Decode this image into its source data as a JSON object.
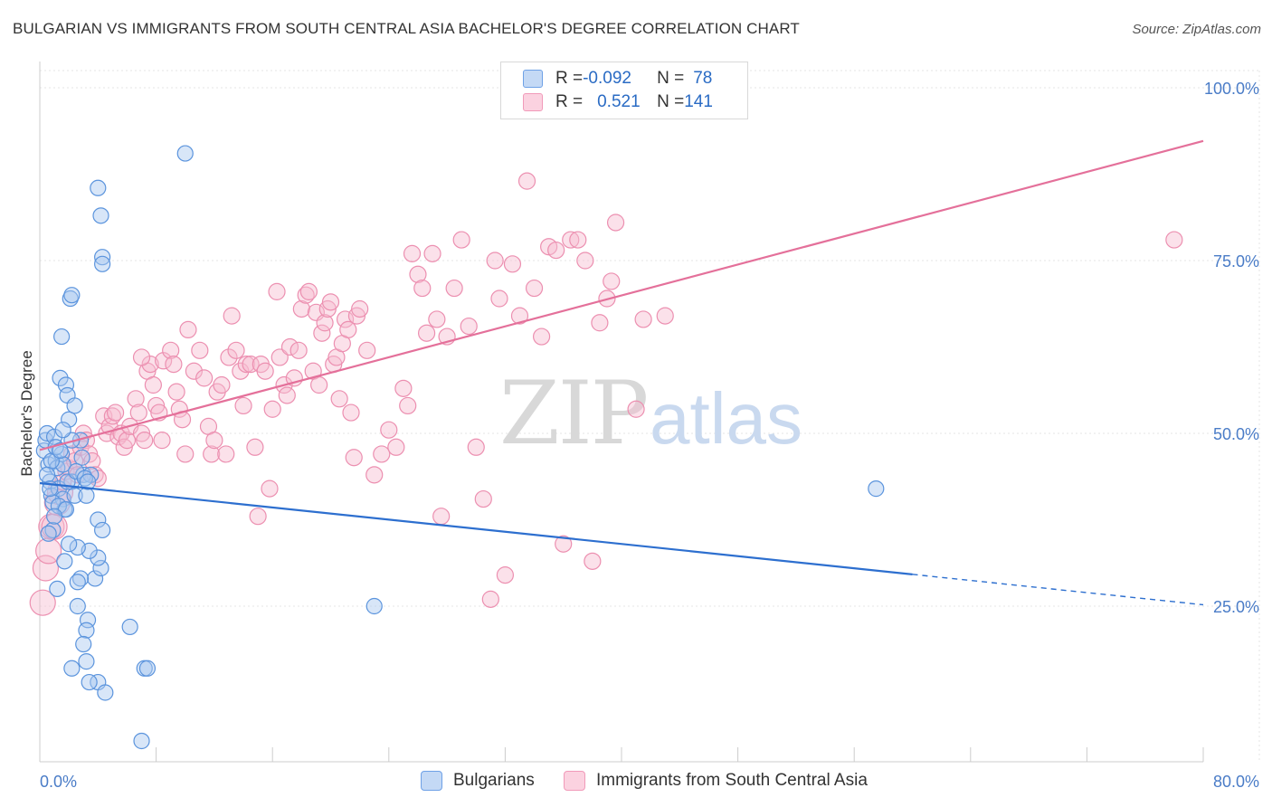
{
  "title": "BULGARIAN VS IMMIGRANTS FROM SOUTH CENTRAL ASIA BACHELOR'S DEGREE CORRELATION CHART",
  "source": "Source: ZipAtlas.com",
  "watermark": {
    "zip": "ZIP",
    "atlas": "atlas"
  },
  "legend_top": {
    "rows": [
      {
        "r_label": "R = ",
        "r_value": "-0.092",
        "n_label": "N = ",
        "n_value": "78",
        "color": "#6ea1e6"
      },
      {
        "r_label": "R = ",
        "r_value": "0.521",
        "n_label": "N = ",
        "n_value": "141",
        "color": "#f19ab9"
      }
    ]
  },
  "legend_bottom": {
    "series_a": "Bulgarians",
    "series_b": "Immigrants from South Central Asia"
  },
  "colors": {
    "blue_fill": "#a9c7f0",
    "blue_stroke": "#5b94dd",
    "blue_line": "#2d6fcf",
    "pink_fill": "#f7bcd0",
    "pink_stroke": "#ec8fb0",
    "pink_line": "#e4709a",
    "grid": "#e6e6e6",
    "axis": "#cccccc",
    "tick_text": "#4a7cc7"
  },
  "chart_data": {
    "type": "scatter",
    "title": "BULGARIAN VS IMMIGRANTS FROM SOUTH CENTRAL ASIA BACHELOR'S DEGREE CORRELATION CHART",
    "xlabel": "",
    "ylabel": "Bachelor's Degree",
    "xlim": [
      0,
      80
    ],
    "ylim": [
      0,
      105
    ],
    "x_tick_labels": [
      {
        "value": 0,
        "label": "0.0%"
      },
      {
        "value": 80,
        "label": "80.0%"
      }
    ],
    "y_tick_labels": [
      {
        "value": 25,
        "label": "25.0%"
      },
      {
        "value": 50,
        "label": "50.0%"
      },
      {
        "value": 75,
        "label": "75.0%"
      },
      {
        "value": 100,
        "label": "100.0%"
      }
    ],
    "series": [
      {
        "name": "Bulgarians",
        "r": -0.092,
        "n": 78,
        "trend": {
          "x0": 0,
          "y0": 42.8,
          "x1": 60,
          "y1": 29.6,
          "dash_to_x": 80,
          "dash_to_y": 25.2
        },
        "points": [
          [
            0.3,
            47.5
          ],
          [
            0.4,
            49
          ],
          [
            0.5,
            50
          ],
          [
            0.6,
            45.5
          ],
          [
            0.7,
            43
          ],
          [
            0.8,
            41
          ],
          [
            0.9,
            36
          ],
          [
            1.0,
            49.5
          ],
          [
            1.1,
            46
          ],
          [
            1.2,
            45
          ],
          [
            1.3,
            42
          ],
          [
            1.4,
            58
          ],
          [
            1.5,
            47
          ],
          [
            1.6,
            40.5
          ],
          [
            1.7,
            39
          ],
          [
            1.8,
            57
          ],
          [
            1.9,
            55.5
          ],
          [
            2.0,
            52
          ],
          [
            2.2,
            43
          ],
          [
            2.4,
            41
          ],
          [
            1.5,
            64
          ],
          [
            2.1,
            69.5
          ],
          [
            2.2,
            70
          ],
          [
            2.8,
            49
          ],
          [
            2.9,
            46.5
          ],
          [
            3.0,
            44
          ],
          [
            3.2,
            41
          ],
          [
            3.5,
            44
          ],
          [
            4.0,
            37.5
          ],
          [
            4.3,
            36
          ],
          [
            3.8,
            29
          ],
          [
            2.8,
            29
          ],
          [
            2.6,
            28.5
          ],
          [
            4.2,
            30.5
          ],
          [
            4.0,
            32
          ],
          [
            3.4,
            33
          ],
          [
            2.6,
            33.5
          ],
          [
            2.0,
            34
          ],
          [
            1.7,
            31.5
          ],
          [
            1.2,
            27.5
          ],
          [
            3.3,
            23
          ],
          [
            3.2,
            21.5
          ],
          [
            3.0,
            19.5
          ],
          [
            2.6,
            25
          ],
          [
            3.2,
            17
          ],
          [
            2.2,
            16
          ],
          [
            4.0,
            14
          ],
          [
            3.4,
            14
          ],
          [
            4.5,
            12.5
          ],
          [
            6.2,
            22
          ],
          [
            7.2,
            16
          ],
          [
            7.4,
            16
          ],
          [
            7.0,
            5.5
          ],
          [
            4.3,
            75.5
          ],
          [
            4.3,
            74.5
          ],
          [
            4.0,
            85.5
          ],
          [
            4.2,
            81.5
          ],
          [
            10.0,
            90.5
          ],
          [
            57.5,
            42
          ],
          [
            23.0,
            25
          ],
          [
            2.4,
            54
          ],
          [
            1.6,
            45.5
          ],
          [
            1.9,
            43
          ],
          [
            2.5,
            44.5
          ],
          [
            0.9,
            40
          ],
          [
            1.3,
            39.5
          ],
          [
            1.8,
            39
          ],
          [
            3.1,
            43.5
          ],
          [
            3.3,
            43
          ],
          [
            0.6,
            35.5
          ],
          [
            0.8,
            46
          ],
          [
            1.1,
            48
          ],
          [
            1.4,
            47.5
          ],
          [
            0.5,
            44
          ],
          [
            0.7,
            42
          ],
          [
            1.0,
            38
          ],
          [
            2.2,
            49
          ],
          [
            1.6,
            50.5
          ]
        ]
      },
      {
        "name": "Immigrants from South Central Asia",
        "r": 0.521,
        "n": 141,
        "trend": {
          "x0": 0,
          "y0": 47.6,
          "x1": 80,
          "y1": 92.3
        },
        "points": [
          [
            0.2,
            25.5
          ],
          [
            0.4,
            30.5
          ],
          [
            0.6,
            33
          ],
          [
            0.8,
            36.5
          ],
          [
            1.0,
            36.5
          ],
          [
            1.2,
            40
          ],
          [
            1.4,
            41.5
          ],
          [
            1.6,
            43
          ],
          [
            1.8,
            44.5
          ],
          [
            2.0,
            45
          ],
          [
            2.2,
            47
          ],
          [
            2.4,
            46
          ],
          [
            2.6,
            44
          ],
          [
            2.8,
            48
          ],
          [
            3.0,
            50
          ],
          [
            3.2,
            49
          ],
          [
            3.4,
            47
          ],
          [
            3.6,
            46
          ],
          [
            3.8,
            44
          ],
          [
            4.0,
            43.5
          ],
          [
            4.4,
            52.5
          ],
          [
            4.6,
            50
          ],
          [
            4.8,
            51
          ],
          [
            5.0,
            52.5
          ],
          [
            5.2,
            53
          ],
          [
            5.4,
            49.5
          ],
          [
            5.6,
            50
          ],
          [
            5.8,
            48
          ],
          [
            6.0,
            49
          ],
          [
            6.2,
            51
          ],
          [
            6.6,
            55
          ],
          [
            6.8,
            53
          ],
          [
            7.0,
            50
          ],
          [
            7.2,
            49
          ],
          [
            7.4,
            59
          ],
          [
            7.6,
            60
          ],
          [
            7.8,
            57
          ],
          [
            8.0,
            54
          ],
          [
            8.2,
            53
          ],
          [
            8.4,
            49
          ],
          [
            7.0,
            61
          ],
          [
            8.5,
            60.5
          ],
          [
            9.0,
            62
          ],
          [
            9.2,
            60
          ],
          [
            9.4,
            56
          ],
          [
            9.6,
            53.5
          ],
          [
            9.8,
            52
          ],
          [
            10.0,
            47
          ],
          [
            10.2,
            65
          ],
          [
            10.6,
            59
          ],
          [
            11.0,
            62
          ],
          [
            11.3,
            58
          ],
          [
            11.6,
            51
          ],
          [
            11.8,
            47
          ],
          [
            12.0,
            49
          ],
          [
            12.2,
            56
          ],
          [
            12.5,
            57
          ],
          [
            12.8,
            47
          ],
          [
            13.0,
            61
          ],
          [
            13.2,
            67
          ],
          [
            13.5,
            62
          ],
          [
            13.8,
            59
          ],
          [
            14.0,
            54
          ],
          [
            14.2,
            60
          ],
          [
            14.5,
            60
          ],
          [
            14.8,
            48
          ],
          [
            15.0,
            38
          ],
          [
            15.2,
            60
          ],
          [
            15.5,
            59
          ],
          [
            15.8,
            42
          ],
          [
            16.0,
            53.5
          ],
          [
            16.3,
            70.5
          ],
          [
            16.5,
            61
          ],
          [
            16.8,
            57
          ],
          [
            17.0,
            55.5
          ],
          [
            17.2,
            62.5
          ],
          [
            17.5,
            58
          ],
          [
            17.8,
            62
          ],
          [
            18.0,
            68
          ],
          [
            18.3,
            70
          ],
          [
            18.5,
            70.5
          ],
          [
            18.8,
            59
          ],
          [
            19.0,
            67.5
          ],
          [
            19.2,
            57
          ],
          [
            19.4,
            64.5
          ],
          [
            19.6,
            66
          ],
          [
            19.8,
            68
          ],
          [
            20.0,
            69
          ],
          [
            20.2,
            60
          ],
          [
            20.4,
            61
          ],
          [
            20.6,
            55
          ],
          [
            20.8,
            63
          ],
          [
            21.0,
            66.5
          ],
          [
            21.2,
            65
          ],
          [
            21.4,
            53
          ],
          [
            21.6,
            46.5
          ],
          [
            21.8,
            67
          ],
          [
            22.0,
            68
          ],
          [
            22.5,
            62
          ],
          [
            23.0,
            44
          ],
          [
            23.5,
            47
          ],
          [
            24.0,
            50.5
          ],
          [
            24.5,
            48
          ],
          [
            25.0,
            56.5
          ],
          [
            25.3,
            54
          ],
          [
            25.6,
            76
          ],
          [
            26.0,
            73
          ],
          [
            26.3,
            71
          ],
          [
            26.6,
            64.5
          ],
          [
            27.0,
            76
          ],
          [
            27.3,
            66.5
          ],
          [
            27.6,
            38
          ],
          [
            28.0,
            64
          ],
          [
            28.5,
            71
          ],
          [
            29.0,
            78
          ],
          [
            29.5,
            65.5
          ],
          [
            30.0,
            48
          ],
          [
            30.5,
            40.5
          ],
          [
            31.0,
            26
          ],
          [
            31.3,
            75
          ],
          [
            31.6,
            69.5
          ],
          [
            32.0,
            29.5
          ],
          [
            32.5,
            74.5
          ],
          [
            33.0,
            67
          ],
          [
            33.5,
            86.5
          ],
          [
            34.0,
            71
          ],
          [
            34.5,
            64
          ],
          [
            35.0,
            77
          ],
          [
            35.5,
            76.5
          ],
          [
            36.0,
            34
          ],
          [
            36.5,
            78
          ],
          [
            37.0,
            78
          ],
          [
            37.5,
            75
          ],
          [
            38.0,
            31.5
          ],
          [
            38.5,
            66
          ],
          [
            39.0,
            69.5
          ],
          [
            39.3,
            72
          ],
          [
            39.6,
            80.5
          ],
          [
            41.0,
            53.5
          ],
          [
            41.5,
            66.5
          ],
          [
            43.0,
            67
          ],
          [
            78.0,
            78
          ]
        ]
      }
    ]
  }
}
